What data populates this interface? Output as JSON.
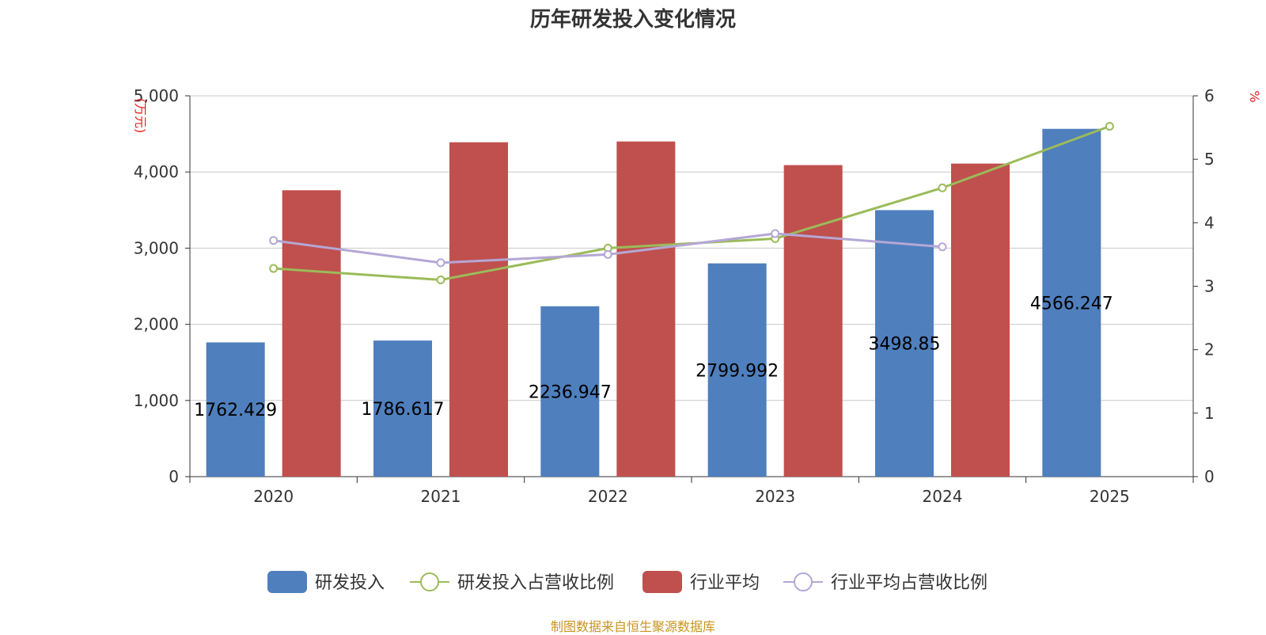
{
  "chart_data": {
    "type": "bar",
    "title": "历年研发投入变化情况",
    "categories": [
      "2020",
      "2021",
      "2022",
      "2023",
      "2024",
      "2025"
    ],
    "y_left": {
      "unit": "(万元)",
      "ylim": [
        0,
        5000
      ],
      "ticks": [
        0,
        1000,
        2000,
        3000,
        4000,
        5000
      ],
      "tick_labels": [
        "0",
        "1,000",
        "2,000",
        "3,000",
        "4,000",
        "5,000"
      ]
    },
    "y_right": {
      "unit": "%",
      "ylim": [
        0,
        6
      ],
      "ticks": [
        0,
        1,
        2,
        3,
        4,
        5,
        6
      ],
      "tick_labels": [
        "0",
        "1",
        "2",
        "3",
        "4",
        "5",
        "6"
      ]
    },
    "grid": true,
    "legend_position": "bottom",
    "series": [
      {
        "name": "研发投入",
        "type": "bar",
        "axis": "left",
        "color": "#4f7fbd",
        "values": [
          1762.429,
          1786.617,
          2236.947,
          2799.992,
          3498.85,
          4566.247
        ],
        "labels": [
          "1762.429",
          "1786.617",
          "2236.947",
          "2799.992",
          "3498.85",
          "4566.247"
        ]
      },
      {
        "name": "研发投入占营收比例",
        "type": "line",
        "axis": "right",
        "color": "#9bbb59",
        "values": [
          3.28,
          3.1,
          3.6,
          3.75,
          4.55,
          5.52
        ]
      },
      {
        "name": "行业平均",
        "type": "bar",
        "axis": "left",
        "color": "#c0504d",
        "values": [
          3760,
          4390,
          4400,
          4090,
          4110,
          null
        ]
      },
      {
        "name": "行业平均占营收比例",
        "type": "line",
        "axis": "right",
        "color": "#b4a7d6",
        "values": [
          3.72,
          3.37,
          3.5,
          3.83,
          3.62,
          null
        ]
      }
    ]
  },
  "source_note": "制图数据来自恒生聚源数据库"
}
